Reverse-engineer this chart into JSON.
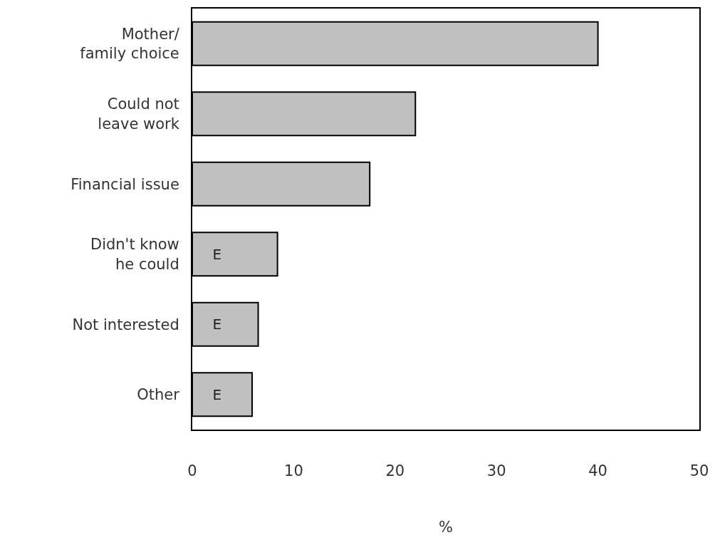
{
  "chart_data": {
    "type": "bar",
    "orientation": "horizontal",
    "categories": [
      "Mother/\nfamily choice",
      "Could not\nleave work",
      "Financial issue",
      "Didn't know\nhe could",
      "Not interested",
      "Other"
    ],
    "values": [
      40,
      22,
      17.5,
      8.4,
      6.5,
      5.9
    ],
    "value_labels": [
      null,
      null,
      null,
      "E",
      "E",
      "E"
    ],
    "color": "#c0c0c0",
    "xlim": [
      0,
      50
    ],
    "xticks": [
      0,
      10,
      20,
      30,
      40,
      50
    ],
    "xlabel": "%",
    "grid": false
  }
}
